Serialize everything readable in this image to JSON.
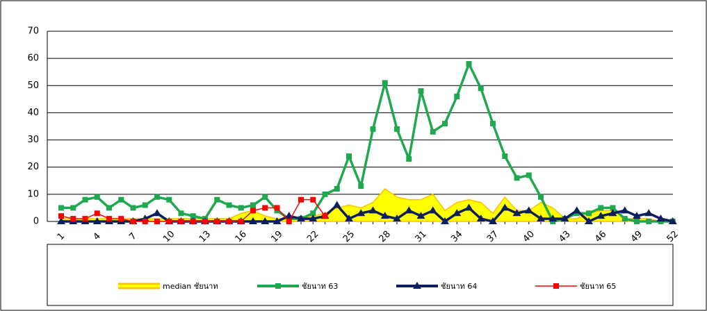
{
  "chart_data": {
    "type": "line",
    "categories": [
      1,
      null,
      null,
      4,
      null,
      null,
      7,
      null,
      null,
      10,
      null,
      null,
      13,
      null,
      null,
      16,
      null,
      null,
      19,
      null,
      null,
      22,
      null,
      null,
      25,
      null,
      null,
      28,
      null,
      null,
      31,
      null,
      null,
      34,
      null,
      null,
      37,
      null,
      null,
      40,
      null,
      null,
      43,
      null,
      null,
      46,
      null,
      null,
      49,
      null,
      null,
      52
    ],
    "ylim": [
      0,
      70
    ],
    "yticks": [
      0,
      10,
      20,
      30,
      40,
      50,
      60,
      70
    ],
    "grid": true,
    "series": [
      {
        "name": "median ชัยนาท",
        "style": "area",
        "color": "#ffff00",
        "edge": "#ffc000",
        "values": [
          1,
          1,
          1,
          1,
          1,
          1,
          1,
          1,
          1,
          1,
          1,
          1,
          1,
          1,
          1,
          3,
          4,
          2,
          1,
          1,
          1,
          2,
          3,
          5,
          6,
          5,
          7,
          12,
          9,
          8,
          8,
          10,
          4,
          7,
          8,
          7,
          3,
          9,
          4,
          4,
          7,
          5,
          1,
          1,
          3,
          4,
          4,
          1,
          1,
          1,
          0,
          0
        ]
      },
      {
        "name": "ชัยนาท 63",
        "style": "line",
        "marker": "square",
        "color": "#1fa84f",
        "values": [
          5,
          5,
          8,
          9,
          5,
          8,
          5,
          6,
          9,
          8,
          3,
          2,
          1,
          8,
          6,
          5,
          6,
          9,
          4,
          1,
          1,
          3,
          10,
          12,
          24,
          13,
          34,
          51,
          34,
          23,
          48,
          33,
          36,
          46,
          58,
          49,
          36,
          24,
          16,
          17,
          9,
          0,
          1,
          3,
          3,
          5,
          5,
          1,
          0,
          0,
          0,
          0
        ]
      },
      {
        "name": "ชัยนาท 64",
        "style": "line",
        "marker": "triangle",
        "color": "#0c1f5c",
        "values": [
          0,
          0,
          0,
          0,
          0,
          0,
          0,
          1,
          3,
          0,
          0,
          0,
          0,
          0,
          0,
          0,
          0,
          0,
          0,
          2,
          1,
          1,
          2,
          6,
          1,
          3,
          4,
          2,
          1,
          4,
          2,
          4,
          0,
          3,
          5,
          1,
          0,
          5,
          3,
          4,
          1,
          1,
          1,
          4,
          0,
          2,
          3,
          4,
          2,
          3,
          1,
          0
        ]
      },
      {
        "name": "ชัยนาท 65",
        "style": "line",
        "marker": "square",
        "color": "#ff0000",
        "values": [
          2,
          1,
          1,
          3,
          1,
          1,
          0,
          0,
          0,
          0,
          0,
          0,
          0,
          0,
          0,
          0,
          4,
          5,
          5,
          0,
          8,
          8,
          2,
          null,
          null,
          null,
          null,
          null,
          null,
          null,
          null,
          null,
          null,
          null,
          null,
          null,
          null,
          null,
          null,
          null,
          null,
          null,
          null,
          null,
          null,
          null,
          null,
          null,
          null,
          null,
          null,
          null
        ]
      }
    ]
  }
}
